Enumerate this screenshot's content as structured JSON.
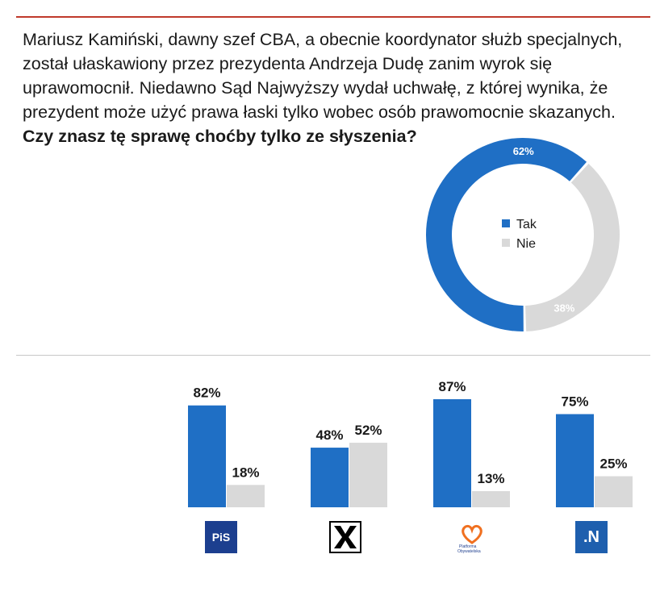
{
  "question": {
    "line1": "Mariusz Kamiński, dawny szef CBA, a obecnie koordynator służb specjalnych,",
    "line2": "został ułaskawiony przez prezydenta Andrzeja Dudę zanim wyrok się",
    "line3": "uprawomocnił. Niedawno Sąd Najwyższy wydał uchwałę, z której wynika, że",
    "line4": "prezydent może użyć prawa łaski tylko wobec osób prawomocnie skazanych.",
    "bold_line": "Czy znasz tę sprawę choćby tylko ze słyszenia?"
  },
  "colors": {
    "tak": "#1f6fc5",
    "nie": "#d9d9d9",
    "accent": "#c0392b"
  },
  "chart_data": [
    {
      "type": "pie",
      "subtype": "donut",
      "categories": [
        "Tak",
        "Nie"
      ],
      "values": [
        62,
        38
      ],
      "labels": [
        "62%",
        "38%"
      ],
      "legend": [
        "Tak",
        "Nie"
      ],
      "legend_placement": "center"
    },
    {
      "type": "bar",
      "categories": [
        "PiS",
        "Kukiz'15",
        "Platforma Obywatelska",
        "Nowoczesna"
      ],
      "series": [
        {
          "name": "Tak",
          "values": [
            82,
            48,
            87,
            75
          ],
          "labels": [
            "82%",
            "48%",
            "87%",
            "75%"
          ]
        },
        {
          "name": "Nie",
          "values": [
            18,
            52,
            13,
            25
          ],
          "labels": [
            "18%",
            "52%",
            "13%",
            "25%"
          ]
        }
      ],
      "ylim": [
        0,
        100
      ]
    }
  ],
  "logos": {
    "pis": "PiS",
    "kukiz": "kukiz-logo",
    "po_line1": "Platforma",
    "po_line2": "Obywatelska",
    "n": ".N"
  }
}
